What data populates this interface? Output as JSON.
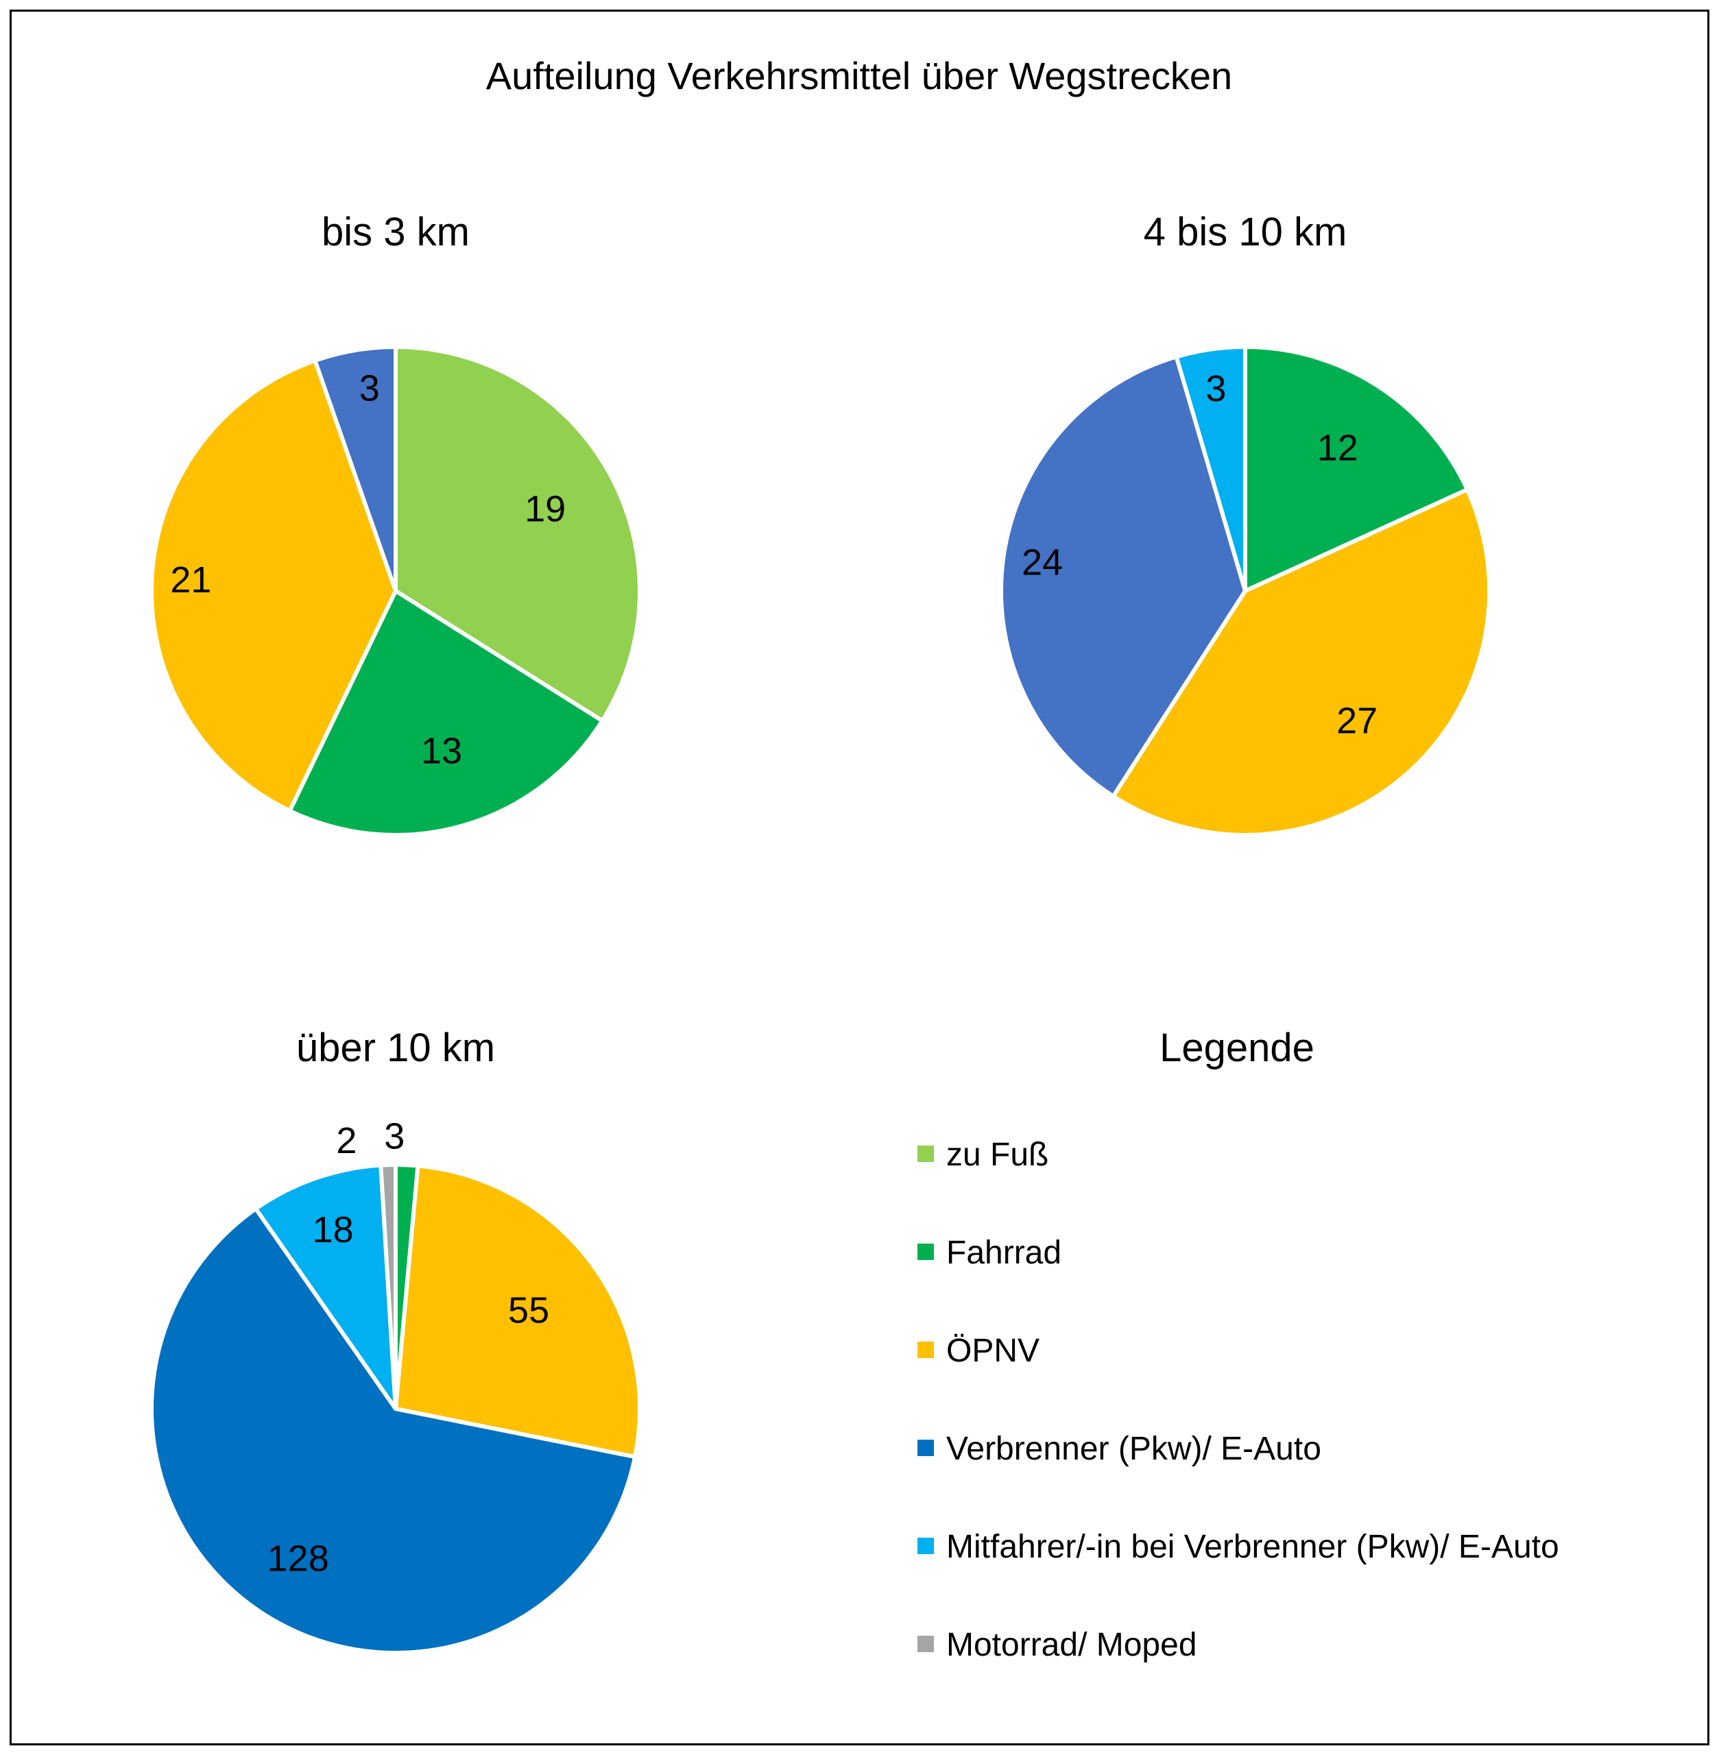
{
  "title": "Aufteilung Verkehrsmittel über Wegstrecken",
  "legend_title": "Legende",
  "categories": [
    {
      "key": "fuss",
      "label": "zu Fuß",
      "color": "#92D050"
    },
    {
      "key": "fahrrad",
      "label": "Fahrrad",
      "color": "#00B050"
    },
    {
      "key": "oepnv",
      "label": "ÖPNV",
      "color": "#FFC000"
    },
    {
      "key": "pkw",
      "label": "Verbrenner (Pkw)/ E-Auto",
      "color": "#0070C0"
    },
    {
      "key": "mitfahrer",
      "label": "Mitfahrer/-in bei Verbrenner (Pkw)/ E-Auto",
      "color": "#00B0F0"
    },
    {
      "key": "motorrad",
      "label": "Motorrad/ Moped",
      "color": "#A5A5A5"
    }
  ],
  "chart_data": [
    {
      "type": "pie",
      "title": "bis 3 km",
      "slices": [
        {
          "category": "fuss",
          "value": 19,
          "label": "19",
          "color": "#92D050"
        },
        {
          "category": "fahrrad",
          "value": 13,
          "label": "13",
          "color": "#00B050"
        },
        {
          "category": "oepnv",
          "value": 21,
          "label": "21",
          "color": "#FFC000"
        },
        {
          "category": "pkw",
          "value": 3,
          "label": "3",
          "color": "#4472C4"
        }
      ]
    },
    {
      "type": "pie",
      "title": "4 bis 10 km",
      "slices": [
        {
          "category": "fahrrad",
          "value": 12,
          "label": "12",
          "color": "#00B050"
        },
        {
          "category": "oepnv",
          "value": 27,
          "label": "27",
          "color": "#FFC000"
        },
        {
          "category": "pkw",
          "value": 24,
          "label": "24",
          "color": "#4472C4"
        },
        {
          "category": "mitfahrer",
          "value": 3,
          "label": "3",
          "color": "#00B0F0"
        }
      ]
    },
    {
      "type": "pie",
      "title": "über 10 km",
      "slices": [
        {
          "category": "fahrrad",
          "value": 3,
          "label": "3",
          "color": "#00B050"
        },
        {
          "category": "oepnv",
          "value": 55,
          "label": "55",
          "color": "#FFC000"
        },
        {
          "category": "pkw",
          "value": 128,
          "label": "128",
          "color": "#0070C0"
        },
        {
          "category": "mitfahrer",
          "value": 18,
          "label": "18",
          "color": "#00B0F0"
        },
        {
          "category": "motorrad",
          "value": 2,
          "label": "2",
          "color": "#A5A5A5"
        }
      ]
    }
  ]
}
